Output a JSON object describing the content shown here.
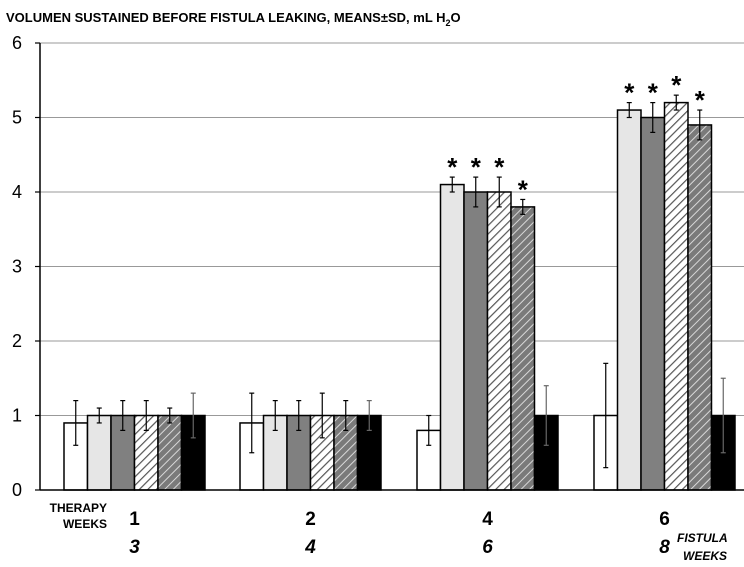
{
  "chart_data": {
    "type": "bar",
    "title_main": "VOLUMEN SUSTAINED BEFORE FISTULA LEAKING, MEANS±SD, mL H",
    "title_sub": "2",
    "title_end": "O",
    "ylim": [
      0,
      6
    ],
    "yticks": [
      0,
      1,
      2,
      3,
      4,
      5,
      6
    ],
    "grid": true,
    "x_caption_top": "THERAPY",
    "x_caption_bottom": "WEEKS",
    "x2_caption_top": "FISTULA",
    "x2_caption_bottom": "WEEKS",
    "groups": [
      {
        "therapy_weeks": "1",
        "fistula_weeks": "3"
      },
      {
        "therapy_weeks": "2",
        "fistula_weeks": "4"
      },
      {
        "therapy_weeks": "4",
        "fistula_weeks": "6"
      },
      {
        "therapy_weeks": "6",
        "fistula_weeks": "8"
      }
    ],
    "series": [
      {
        "fill": "#ffffff",
        "pattern": "none",
        "values": [
          0.9,
          0.9,
          0.8,
          1.0
        ],
        "errors": [
          0.3,
          0.4,
          0.2,
          0.7
        ],
        "significant": [
          false,
          false,
          false,
          false
        ]
      },
      {
        "fill": "#e6e6e6",
        "pattern": "none",
        "values": [
          1.0,
          1.0,
          4.1,
          5.1
        ],
        "errors": [
          0.1,
          0.2,
          0.1,
          0.1
        ],
        "significant": [
          false,
          false,
          true,
          true
        ]
      },
      {
        "fill": "#808080",
        "pattern": "none",
        "values": [
          1.0,
          1.0,
          4.0,
          5.0
        ],
        "errors": [
          0.2,
          0.2,
          0.2,
          0.2
        ],
        "significant": [
          false,
          false,
          true,
          true
        ]
      },
      {
        "fill": "#ffffff",
        "pattern": "light-hatch",
        "values": [
          1.0,
          1.0,
          4.0,
          5.2
        ],
        "errors": [
          0.2,
          0.3,
          0.2,
          0.1
        ],
        "significant": [
          false,
          false,
          true,
          true
        ]
      },
      {
        "fill": "#808080",
        "pattern": "dark-hatch",
        "values": [
          1.0,
          1.0,
          3.8,
          4.9
        ],
        "errors": [
          0.1,
          0.2,
          0.1,
          0.2
        ],
        "significant": [
          false,
          false,
          true,
          true
        ]
      },
      {
        "fill": "#000000",
        "pattern": "none",
        "values": [
          1.0,
          1.0,
          1.0,
          1.0
        ],
        "errors": [
          0.3,
          0.2,
          0.4,
          0.5
        ],
        "significant": [
          false,
          false,
          false,
          false
        ]
      }
    ],
    "significance_marker": "*",
    "axis_color": "#000000",
    "grid_color": "#999999"
  }
}
